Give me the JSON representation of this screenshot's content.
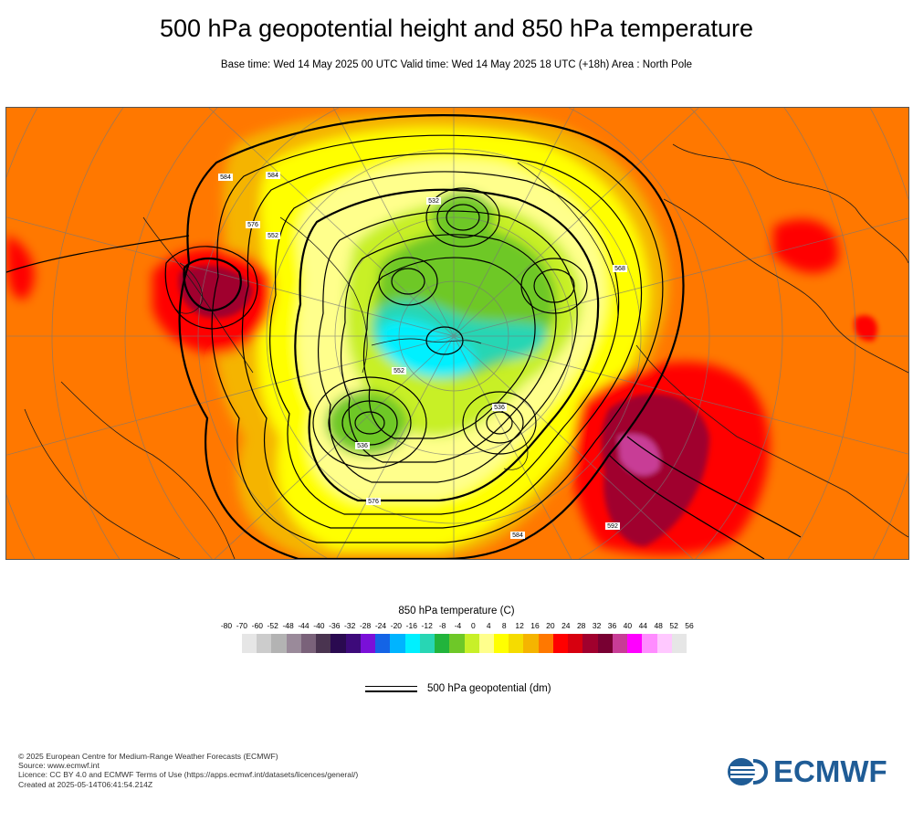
{
  "header": {
    "title": "500 hPa geopotential height and 850 hPa temperature",
    "subtitle": "Base time: Wed 14 May 2025 00 UTC Valid time: Wed 14 May 2025 18 UTC (+18h) Area : North Pole"
  },
  "map": {
    "contour_labels": [
      "584",
      "532",
      "576",
      "536",
      "536",
      "584",
      "552",
      "576",
      "552",
      "568",
      "592",
      "584"
    ]
  },
  "legend": {
    "title": "850 hPa temperature (C)",
    "ticks": [
      "-80",
      "-70",
      "-60",
      "-52",
      "-48",
      "-44",
      "-40",
      "-36",
      "-32",
      "-28",
      "-24",
      "-20",
      "-16",
      "-12",
      "-8",
      "-4",
      "0",
      "4",
      "8",
      "12",
      "16",
      "20",
      "24",
      "28",
      "32",
      "36",
      "40",
      "44",
      "48",
      "52",
      "56"
    ],
    "colors": [
      "#e6e6e6",
      "#cccccc",
      "#b3b3b3",
      "#9a8a9a",
      "#7a627a",
      "#4a3450",
      "#2a0a50",
      "#3d0a7a",
      "#7a10d8",
      "#1464e6",
      "#00b4ff",
      "#00f0ff",
      "#28d6b4",
      "#22b43c",
      "#6ec828",
      "#c8f028",
      "#ffff8c",
      "#ffff00",
      "#f5dc00",
      "#f5b400",
      "#ff7800",
      "#ff0000",
      "#d7000f",
      "#a0002d",
      "#780032",
      "#c83c96",
      "#ff00ff",
      "#ff8cff",
      "#ffc8ff",
      "#e6c8e6",
      "#e6e6e6"
    ],
    "line_label": "500 hPa geopotential (dm)"
  },
  "footer": {
    "lines": [
      "© 2025 European Centre for Medium-Range Weather Forecasts (ECMWF)",
      "Source: www.ecmwf.int",
      "Licence: CC BY 4.0 and ECMWF Terms of Use (https://apps.ecmwf.int/datasets/licences/general/)",
      "Created at 2025-05-14T06:41:54.214Z"
    ]
  },
  "logo": {
    "text": "ECMWF",
    "color": "#1f5c96"
  }
}
